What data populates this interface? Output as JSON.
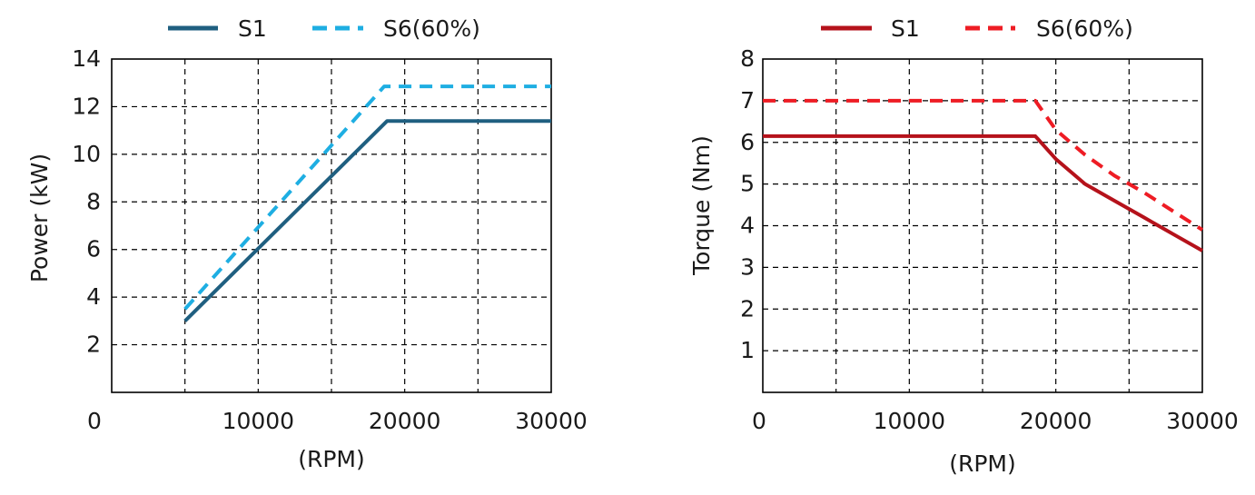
{
  "chart_data": [
    {
      "type": "line",
      "title": "",
      "xlabel": "(RPM)",
      "ylabel": "Power (kW)",
      "xlim": [
        0,
        30000
      ],
      "ylim": [
        0,
        14
      ],
      "x_ticks": [
        0,
        10000,
        20000,
        30000
      ],
      "y_ticks": [
        2,
        4,
        6,
        8,
        10,
        12,
        14
      ],
      "x_tick_labels": [
        "0",
        "10000",
        "20000",
        "30000"
      ],
      "y_tick_labels": [
        "2",
        "4",
        "6",
        "8",
        "10",
        "12",
        "14"
      ],
      "grid": true,
      "legend_position": "top",
      "series": [
        {
          "name": "S1",
          "color": "#1f5f80",
          "dash": "solid",
          "x": [
            5000,
            18800,
            30000
          ],
          "y": [
            3.0,
            11.4,
            11.4
          ]
        },
        {
          "name": "S6(60%)",
          "color": "#1eaee2",
          "dash": "dashed",
          "x": [
            5000,
            18600,
            30000
          ],
          "y": [
            3.5,
            12.85,
            12.85
          ]
        }
      ]
    },
    {
      "type": "line",
      "title": "",
      "xlabel": "(RPM)",
      "ylabel": "Torque  (Nm)",
      "xlim": [
        0,
        30000
      ],
      "ylim": [
        0,
        8
      ],
      "x_ticks": [
        0,
        10000,
        20000,
        30000
      ],
      "y_ticks": [
        1,
        2,
        3,
        4,
        5,
        6,
        7,
        8
      ],
      "x_tick_labels": [
        "0",
        "10000",
        "20000",
        "30000"
      ],
      "y_tick_labels": [
        "1",
        "2",
        "3",
        "4",
        "5",
        "6",
        "7",
        "8"
      ],
      "grid": true,
      "legend_position": "top",
      "series": [
        {
          "name": "S1",
          "color": "#b5121b",
          "dash": "solid",
          "x": [
            0,
            18600,
            20000,
            22000,
            24000,
            26000,
            28000,
            30000
          ],
          "y": [
            6.15,
            6.15,
            5.6,
            5.0,
            4.6,
            4.2,
            3.8,
            3.4
          ]
        },
        {
          "name": "S6(60%)",
          "color": "#ee1c24",
          "dash": "dashed",
          "x": [
            0,
            18600,
            20000,
            22000,
            24000,
            26000,
            28000,
            30000
          ],
          "y": [
            7.0,
            7.0,
            6.3,
            5.7,
            5.2,
            4.8,
            4.35,
            3.9
          ]
        }
      ]
    }
  ]
}
